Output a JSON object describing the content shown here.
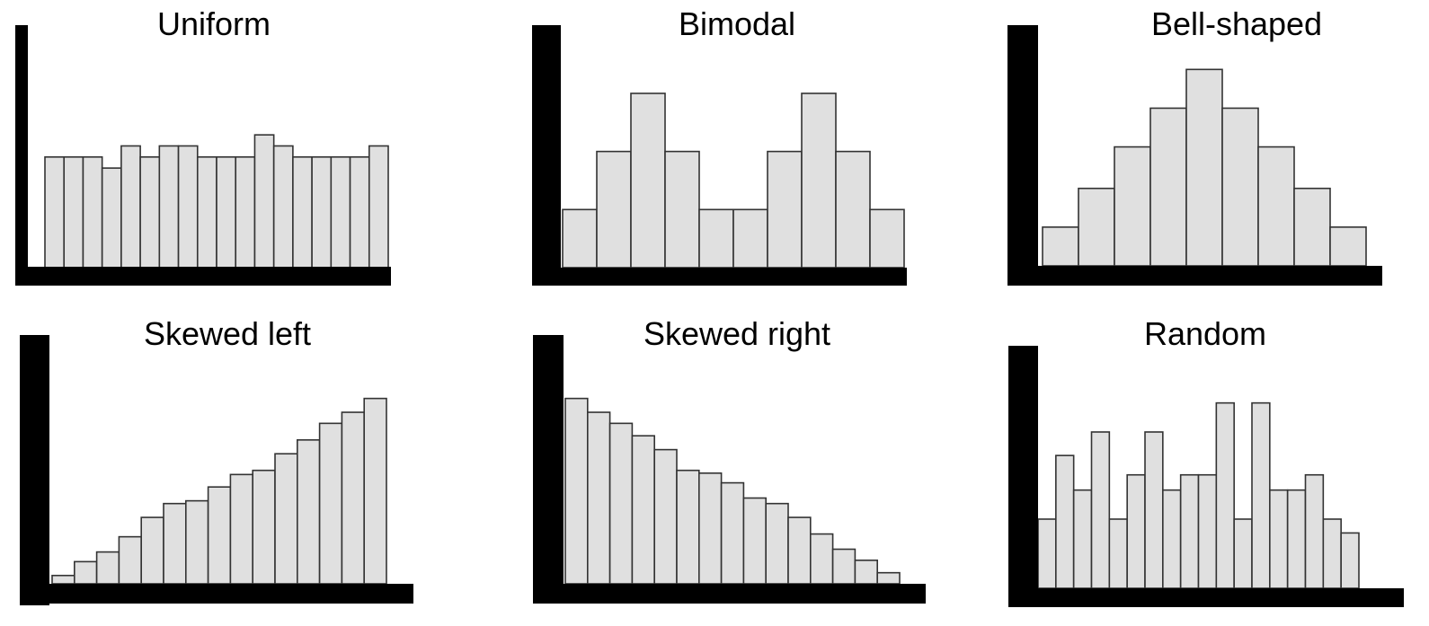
{
  "colors": {
    "bar_fill": "#e0e0e0",
    "bar_stroke": "#333333",
    "axis": "#000000",
    "background": "#ffffff"
  },
  "chart_data": [
    {
      "type": "bar",
      "title": "Uniform",
      "xlabel": "",
      "ylabel": "",
      "values": [
        8,
        8,
        8,
        7.2,
        8.8,
        8,
        8.8,
        8.8,
        8,
        8,
        8,
        9.6,
        8.8,
        8,
        8,
        8,
        8,
        8.8
      ],
      "ylim": [
        0,
        18
      ]
    },
    {
      "type": "bar",
      "title": "Bimodal",
      "xlabel": "",
      "ylabel": "",
      "values": [
        4.2,
        8.4,
        12.6,
        8.4,
        4.2,
        4.2,
        8.4,
        12.6,
        8.4,
        4.2
      ],
      "ylim": [
        0,
        18
      ]
    },
    {
      "type": "bar",
      "title": "Bell-shaped",
      "xlabel": "",
      "ylabel": "",
      "values": [
        2.8,
        5.6,
        8.6,
        11.4,
        14.2,
        11.4,
        8.6,
        5.6,
        2.8
      ],
      "ylim": [
        0,
        18
      ]
    },
    {
      "type": "bar",
      "title": "Skewed left",
      "xlabel": "",
      "ylabel": "",
      "values": [
        0.6,
        1.6,
        2.3,
        3.4,
        4.8,
        5.8,
        6.0,
        7.0,
        7.9,
        8.2,
        9.4,
        10.4,
        11.6,
        12.4,
        13.4
      ],
      "ylim": [
        0,
        18
      ]
    },
    {
      "type": "bar",
      "title": "Skewed right",
      "xlabel": "",
      "ylabel": "",
      "values": [
        13.4,
        12.4,
        11.6,
        10.7,
        9.7,
        8.2,
        8.0,
        7.3,
        6.2,
        5.8,
        4.8,
        3.6,
        2.5,
        1.7,
        0.8
      ],
      "ylim": [
        0,
        18
      ]
    },
    {
      "type": "bar",
      "title": "Random",
      "xlabel": "",
      "ylabel": "",
      "values": [
        5.0,
        9.6,
        7.1,
        11.3,
        5.0,
        8.2,
        11.3,
        7.1,
        8.2,
        8.2,
        13.4,
        5.0,
        13.4,
        7.1,
        7.1,
        8.2,
        5.0,
        4.0
      ],
      "ylim": [
        0,
        18
      ]
    }
  ]
}
